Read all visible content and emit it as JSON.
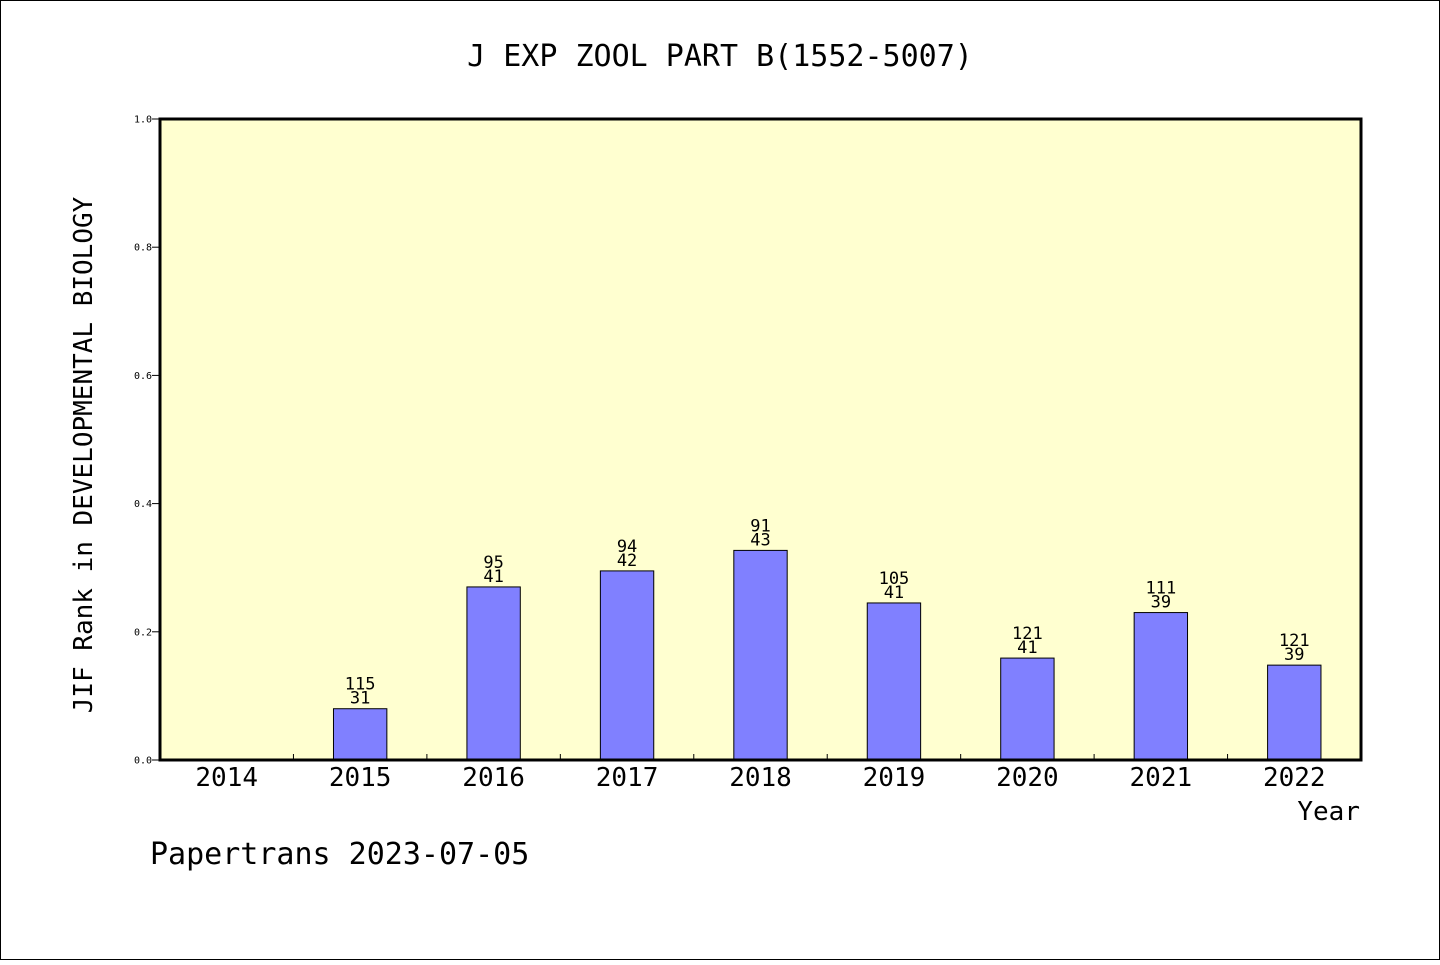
{
  "chart_data": {
    "type": "bar",
    "title": "J EXP ZOOL PART B(1552-5007)",
    "xlabel": "Year",
    "ylabel": "JIF Rank in DEVELOPMENTAL BIOLOGY",
    "categories": [
      "2014",
      "2015",
      "2016",
      "2017",
      "2018",
      "2019",
      "2020",
      "2021",
      "2022"
    ],
    "values": [
      null,
      0.08,
      0.27,
      0.295,
      0.327,
      0.245,
      0.159,
      0.23,
      0.148
    ],
    "labels": [
      null,
      [
        "115",
        "31"
      ],
      [
        "95",
        "41"
      ],
      [
        "94",
        "42"
      ],
      [
        "91",
        "43"
      ],
      [
        "105",
        "41"
      ],
      [
        "121",
        "41"
      ],
      [
        "111",
        "39"
      ],
      [
        "121",
        "39"
      ]
    ],
    "ylim": [
      0,
      1.0
    ],
    "yticks": [
      "0.0",
      "0.2",
      "0.4",
      "0.6",
      "0.8",
      "1.0"
    ],
    "grid": false,
    "colors": {
      "plot_background": "#ffffd0",
      "bar_fill": "#8080ff",
      "bar_stroke": "#000000",
      "frame": "#000000"
    }
  },
  "footer": {
    "text": "Papertrans 2023-07-05"
  }
}
